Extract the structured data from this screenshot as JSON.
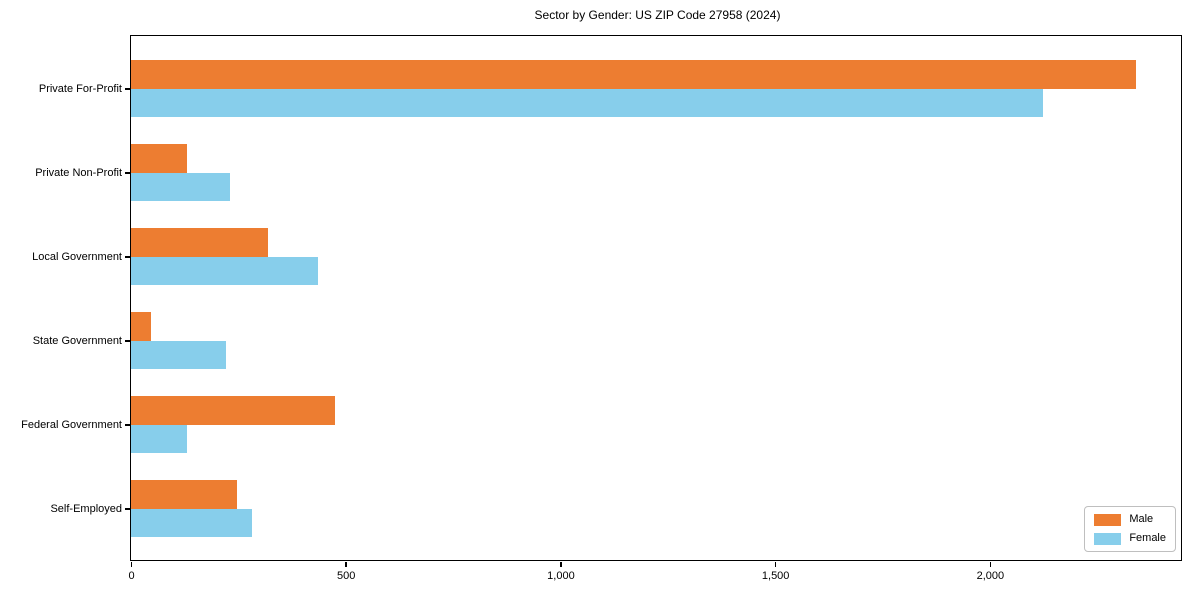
{
  "window": {
    "background_color": "#ffffff"
  },
  "chart_data": {
    "type": "bar",
    "orientation": "horizontal",
    "title": "Sector by Gender: US ZIP Code 27958 (2024)",
    "categories": [
      "Private For-Profit",
      "Private Non-Profit",
      "Local Government",
      "State Government",
      "Federal Government",
      "Self-Employed"
    ],
    "series": [
      {
        "name": "Male",
        "color": "#ED7D31",
        "values": [
          2340,
          130,
          320,
          46,
          476,
          246
        ]
      },
      {
        "name": "Female",
        "color": "#87CEEB",
        "values": [
          2124,
          230,
          435,
          222,
          130,
          282
        ]
      }
    ],
    "xlabel": "",
    "ylabel": "",
    "xlim": [
      0,
      2445
    ],
    "xticks": [
      0,
      500,
      1000,
      1500,
      2000
    ],
    "xtick_labels": [
      "0",
      "500",
      "1,000",
      "1,500",
      "2,000"
    ],
    "grid": false,
    "legend_position": "lower right",
    "axis_color": "#000000",
    "text_color": "#000000",
    "legend_border_color": "#bfbfbf"
  }
}
